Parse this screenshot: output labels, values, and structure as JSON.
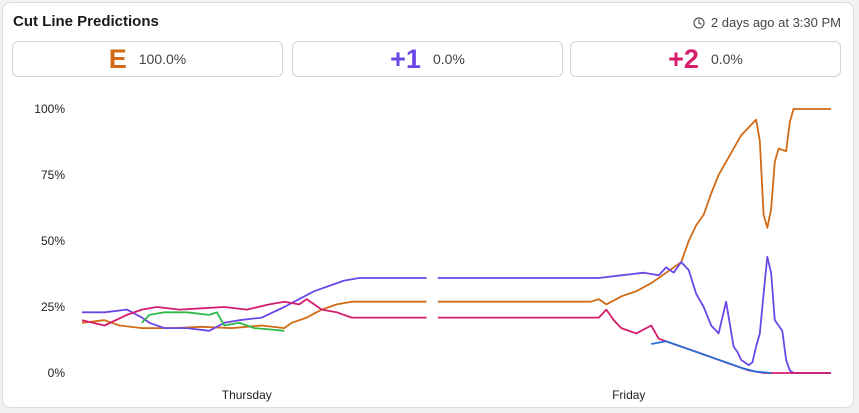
{
  "header": {
    "title": "Cut Line Predictions",
    "timestamp": "2 days ago at 3:30 PM"
  },
  "predictions": [
    {
      "label": "E",
      "value": "100.0%",
      "color": "#d16b16"
    },
    {
      "label": "+1",
      "value": "0.0%",
      "color": "#6c47e8"
    },
    {
      "label": "+2",
      "value": "0.0%",
      "color": "#d41e6b"
    }
  ],
  "chart_data": {
    "type": "line",
    "y_ticks": [
      "0%",
      "25%",
      "50%",
      "75%",
      "100%"
    ],
    "x_ticks": [
      {
        "label": "Thursday",
        "t": 0.22
      },
      {
        "label": "Friday",
        "t": 0.73
      }
    ],
    "ylim": [
      0,
      100
    ],
    "gap": [
      0.46,
      0.475
    ],
    "series": [
      {
        "color": "#d16b16",
        "points": [
          [
            0,
            19
          ],
          [
            0.03,
            20
          ],
          [
            0.05,
            18
          ],
          [
            0.08,
            17
          ],
          [
            0.12,
            17
          ],
          [
            0.16,
            17.5
          ],
          [
            0.2,
            17
          ],
          [
            0.24,
            18
          ],
          [
            0.27,
            17
          ],
          [
            0.28,
            19
          ],
          [
            0.3,
            21
          ],
          [
            0.32,
            24
          ],
          [
            0.34,
            26
          ],
          [
            0.36,
            27
          ],
          [
            0.46,
            27
          ],
          [
            0.475,
            27
          ],
          [
            0.68,
            27
          ],
          [
            0.69,
            28
          ],
          [
            0.7,
            26
          ],
          [
            0.72,
            29
          ],
          [
            0.74,
            31
          ],
          [
            0.76,
            34
          ],
          [
            0.78,
            38
          ],
          [
            0.8,
            42
          ],
          [
            0.81,
            50
          ],
          [
            0.82,
            56
          ],
          [
            0.83,
            60
          ],
          [
            0.84,
            68
          ],
          [
            0.85,
            75
          ],
          [
            0.86,
            80
          ],
          [
            0.87,
            85
          ],
          [
            0.88,
            90
          ],
          [
            0.89,
            93
          ],
          [
            0.9,
            96
          ],
          [
            0.905,
            88
          ],
          [
            0.91,
            60
          ],
          [
            0.915,
            55
          ],
          [
            0.92,
            62
          ],
          [
            0.925,
            80
          ],
          [
            0.93,
            85
          ],
          [
            0.94,
            84
          ],
          [
            0.945,
            95
          ],
          [
            0.95,
            100
          ],
          [
            1,
            100
          ]
        ]
      },
      {
        "color": "#6c47e8",
        "points": [
          [
            0,
            23
          ],
          [
            0.03,
            23
          ],
          [
            0.06,
            24
          ],
          [
            0.08,
            21
          ],
          [
            0.09,
            19
          ],
          [
            0.11,
            17
          ],
          [
            0.14,
            17
          ],
          [
            0.17,
            16
          ],
          [
            0.19,
            19
          ],
          [
            0.21,
            20
          ],
          [
            0.24,
            21
          ],
          [
            0.27,
            25
          ],
          [
            0.29,
            28
          ],
          [
            0.31,
            31
          ],
          [
            0.33,
            33
          ],
          [
            0.35,
            35
          ],
          [
            0.37,
            36
          ],
          [
            0.46,
            36
          ],
          [
            0.475,
            36
          ],
          [
            0.69,
            36
          ],
          [
            0.72,
            37
          ],
          [
            0.75,
            38
          ],
          [
            0.77,
            37
          ],
          [
            0.78,
            40
          ],
          [
            0.79,
            38
          ],
          [
            0.8,
            42
          ],
          [
            0.81,
            39
          ],
          [
            0.82,
            30
          ],
          [
            0.83,
            25
          ],
          [
            0.84,
            18
          ],
          [
            0.85,
            15
          ],
          [
            0.86,
            27
          ],
          [
            0.87,
            10
          ],
          [
            0.875,
            8
          ],
          [
            0.88,
            5
          ],
          [
            0.89,
            3
          ],
          [
            0.895,
            4
          ],
          [
            0.9,
            10
          ],
          [
            0.905,
            15
          ],
          [
            0.91,
            30
          ],
          [
            0.915,
            44
          ],
          [
            0.92,
            38
          ],
          [
            0.925,
            20
          ],
          [
            0.93,
            18
          ],
          [
            0.935,
            16
          ],
          [
            0.94,
            5
          ],
          [
            0.945,
            1
          ],
          [
            0.95,
            0
          ],
          [
            1,
            0
          ]
        ]
      },
      {
        "color": "#d41e6b",
        "points": [
          [
            0,
            20
          ],
          [
            0.03,
            18
          ],
          [
            0.06,
            22
          ],
          [
            0.08,
            24
          ],
          [
            0.1,
            25
          ],
          [
            0.13,
            24
          ],
          [
            0.16,
            24.5
          ],
          [
            0.19,
            25
          ],
          [
            0.22,
            24
          ],
          [
            0.25,
            26
          ],
          [
            0.27,
            27
          ],
          [
            0.29,
            26
          ],
          [
            0.3,
            28
          ],
          [
            0.32,
            24
          ],
          [
            0.34,
            23
          ],
          [
            0.36,
            21
          ],
          [
            0.46,
            21
          ],
          [
            0.475,
            21
          ],
          [
            0.69,
            21
          ],
          [
            0.7,
            24
          ],
          [
            0.71,
            20
          ],
          [
            0.72,
            17
          ],
          [
            0.74,
            15
          ],
          [
            0.76,
            18
          ],
          [
            0.77,
            13
          ],
          [
            0.79,
            11
          ],
          [
            0.81,
            9
          ],
          [
            0.83,
            7
          ],
          [
            0.85,
            5
          ],
          [
            0.87,
            3
          ],
          [
            0.89,
            1
          ],
          [
            0.91,
            0
          ],
          [
            1,
            0
          ]
        ]
      },
      {
        "color": "#2a6fd6",
        "points": [
          [
            0.76,
            11
          ],
          [
            0.78,
            12
          ],
          [
            0.8,
            10
          ],
          [
            0.82,
            8
          ],
          [
            0.84,
            6
          ],
          [
            0.86,
            4
          ],
          [
            0.88,
            2
          ],
          [
            0.9,
            0.5
          ],
          [
            0.92,
            0
          ]
        ]
      },
      {
        "color": "#2fb84a",
        "points": [
          [
            0.08,
            19
          ],
          [
            0.09,
            22
          ],
          [
            0.11,
            23
          ],
          [
            0.14,
            23
          ],
          [
            0.17,
            22
          ],
          [
            0.18,
            23
          ],
          [
            0.19,
            18
          ],
          [
            0.21,
            19
          ],
          [
            0.23,
            17
          ],
          [
            0.25,
            16.5
          ],
          [
            0.27,
            16
          ]
        ]
      }
    ]
  }
}
